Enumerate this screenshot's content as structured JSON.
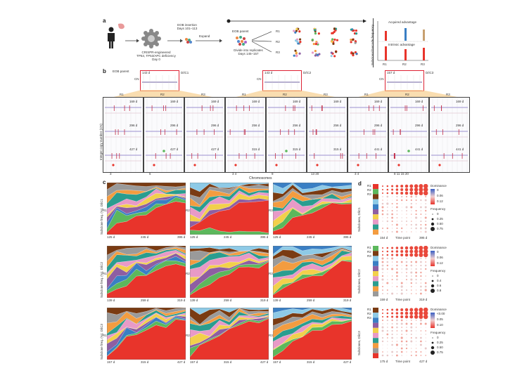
{
  "panel_a": {
    "label": "a",
    "org_caption": "CRISPR-engineered\nTP53, TP53/APC deficiency\nDay 0",
    "eob_insertion": "EOB insertion\nDays 101–113",
    "expand": "Expand",
    "eob_parent": "EOB parent",
    "divide_caption": "Divide into replicates\nDays 145–157",
    "replicates": [
      "R1",
      "R2",
      "R3"
    ],
    "legend_acquired": "Acquired advantage",
    "legend_intrinsic": "Intrinsic advantage",
    "legend_axis": "Subclonal barcode frequency",
    "legend_ticks": [
      "R1",
      "R2",
      "R3"
    ]
  },
  "panel_b": {
    "label": "b",
    "eob_parent": "EOB parent",
    "groups": [
      {
        "name": "D/iC1",
        "parent_day": "143 d",
        "reps": [
          "R1",
          "R2",
          "R3"
        ],
        "days": [
          "169 d",
          "296 d",
          "427 d"
        ],
        "xticks": [
          "3",
          "6"
        ]
      },
      {
        "name": "D/iC2",
        "parent_day": "143 d",
        "reps": [
          "R1",
          "R2",
          "R3"
        ],
        "days": [
          "169 d",
          "256 d",
          "315 d"
        ],
        "xticks": [
          "3 4",
          "9",
          "13 20"
        ]
      },
      {
        "name": "D/iC3",
        "parent_day": "157 d",
        "reps": [
          "R1",
          "R2",
          "R3"
        ],
        "days": [
          "169 d",
          "296 d",
          "441 d"
        ],
        "xticks": [
          "3 4",
          "8 11 15 20"
        ]
      }
    ],
    "ylabel": "Integer copy number (CN)",
    "xlabel": "Chromosomes",
    "cn_label": "CN"
  },
  "panel_c": {
    "label": "c",
    "rows": [
      {
        "ylabel": "Subclone freq. (%), D/iC1",
        "ticks": [
          "125 d",
          "245 d",
          "395 d"
        ]
      },
      {
        "ylabel": "Subclone freq. (%), D/iC2",
        "ticks": [
          "139 d",
          "259 d",
          "319 d"
        ]
      },
      {
        "ylabel": "Subclone freq. (%), D/iC3",
        "ticks": [
          "157 d",
          "315 d",
          "427 d"
        ]
      }
    ],
    "reps": [
      "R1",
      "R2",
      "R3"
    ]
  },
  "panel_d": {
    "label": "d",
    "blocks": [
      {
        "ylabel": "Subclones, D/iC1",
        "x_start": "154 d",
        "x_end": "395 d",
        "xlabel": "Time point",
        "dom_title": "Dominance",
        "dom_ticks": [
          "0",
          "0.06",
          "0.12"
        ],
        "freq_title": "Frequency",
        "freq_ticks": [
          "0",
          "0.25",
          "0.50",
          "0.75"
        ]
      },
      {
        "ylabel": "Subclones, D/iC2",
        "x_start": "159 d",
        "x_end": "319 d",
        "xlabel": "Time point",
        "dom_title": "Dominance",
        "dom_ticks": [
          "0",
          "0.06",
          "0.12"
        ],
        "freq_title": "Frequency",
        "freq_ticks": [
          "0",
          "0.4",
          "0.6",
          "0.8"
        ]
      },
      {
        "ylabel": "Subclones, D/iC3",
        "x_start": "175 d",
        "x_end": "427 d",
        "xlabel": "Time point",
        "dom_title": "Dominance",
        "dom_ticks": [
          "<0.00",
          "0.05",
          "0.10"
        ],
        "freq_title": "Frequency",
        "freq_ticks": [
          "0",
          "0.25",
          "0.50",
          "0.75"
        ]
      }
    ],
    "reps": [
      "R1",
      "R2",
      "R3"
    ]
  },
  "colors": {
    "red": "#e8342b",
    "green": "#5cb85c",
    "brown": "#7a3b12",
    "lightblue": "#8ecae6",
    "blue": "#3a7fc4",
    "purple": "#8e5ea2",
    "yellow": "#f2d04b",
    "pink": "#e89ac7",
    "teal": "#2a9d8f",
    "orange": "#f39c40",
    "grey": "#9a9a9a"
  }
}
